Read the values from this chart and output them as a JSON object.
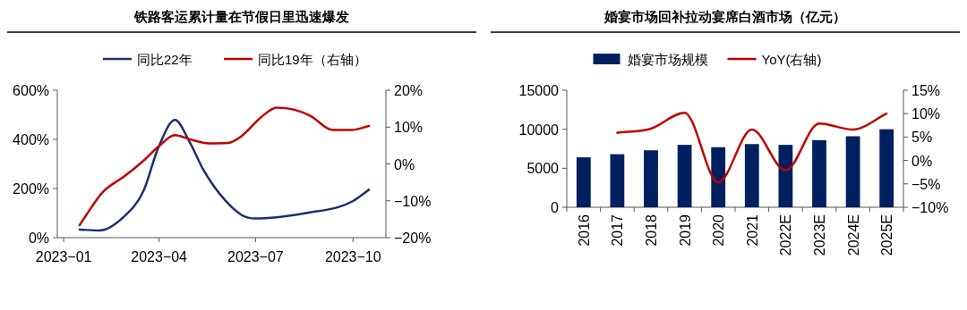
{
  "chart_data": [
    {
      "type": "line",
      "title": "铁路客运累计量在节假日里迅速爆发",
      "legend": "top",
      "grid": false,
      "marker": "none",
      "line_style": "solid",
      "xlim": [
        "2022-12-26",
        "2023-11-01"
      ],
      "xticks": [
        {
          "value": "2023-01-01",
          "label": "2023−01"
        },
        {
          "value": "2023-04-01",
          "label": "2023−04"
        },
        {
          "value": "2023-07-01",
          "label": "2023−07"
        },
        {
          "value": "2023-10-01",
          "label": "2023−10"
        }
      ],
      "ylim": [
        0,
        600
      ],
      "yticks": [
        {
          "value": 0,
          "label": "0%"
        },
        {
          "value": 200,
          "label": "200%"
        },
        {
          "value": 400,
          "label": "400%"
        },
        {
          "value": 600,
          "label": "600%"
        }
      ],
      "y2lim": [
        -20,
        20
      ],
      "y2ticks": [
        {
          "value": -20,
          "label": "−20%"
        },
        {
          "value": -10,
          "label": "−10%"
        },
        {
          "value": 0,
          "label": "0%"
        },
        {
          "value": 10,
          "label": "10%"
        },
        {
          "value": 20,
          "label": "20%"
        }
      ],
      "series": [
        {
          "name": "同比22年",
          "color": "#1b2f6e",
          "x": [
            "2023-01-16",
            "2023-02-04",
            "2023-02-27",
            "2023-03-17",
            "2023-03-31",
            "2023-04-16",
            "2023-04-30",
            "2023-05-13",
            "2023-05-29",
            "2023-06-18",
            "2023-07-01",
            "2023-07-21",
            "2023-08-19",
            "2023-09-17",
            "2023-10-01",
            "2023-10-16"
          ],
          "values": [
            33,
            29,
            86,
            187,
            363,
            479,
            388,
            275,
            174,
            92,
            78,
            83,
            101,
            124,
            149,
            195
          ]
        },
        {
          "name": "同比19年（右轴）",
          "color": "#c00000",
          "axis": "y2",
          "x": [
            "2023-01-16",
            "2023-02-07",
            "2023-02-27",
            "2023-03-17",
            "2023-03-31",
            "2023-04-16",
            "2023-04-30",
            "2023-05-18",
            "2023-06-05",
            "2023-06-18",
            "2023-07-06",
            "2023-07-21",
            "2023-08-07",
            "2023-08-22",
            "2023-09-12",
            "2023-09-29",
            "2023-10-16"
          ],
          "values": [
            -16.6,
            -7.6,
            -3.4,
            0.8,
            4.6,
            7.8,
            6.7,
            5.6,
            5.7,
            7.6,
            12.6,
            15.3,
            14.7,
            13.0,
            9.2,
            9.2,
            10.3
          ]
        }
      ]
    },
    {
      "type": "bar",
      "title": "婚宴市场回补拉动宴席白酒市场（亿元）",
      "legend": "top",
      "grid": false,
      "categories": [
        "2016",
        "2017",
        "2018",
        "2019",
        "2020",
        "2021",
        "2022E",
        "2023E",
        "2024E",
        "2025E"
      ],
      "ylim": [
        0,
        15000
      ],
      "yticks": [
        0,
        5000,
        10000,
        15000
      ],
      "y2lim": [
        -10,
        15
      ],
      "y2ticks": [
        {
          "value": -10,
          "label": "−10%"
        },
        {
          "value": -5,
          "label": "−5%"
        },
        {
          "value": 0,
          "label": "0%"
        },
        {
          "value": 5,
          "label": "5%"
        },
        {
          "value": 10,
          "label": "10%"
        },
        {
          "value": 15,
          "label": "15%"
        }
      ],
      "series": [
        {
          "name": "婚宴市场规模",
          "color": "#002060",
          "values": [
            6400,
            6800,
            7300,
            8000,
            7700,
            8100,
            8000,
            8600,
            9100,
            10000
          ]
        },
        {
          "name": "YoY(右轴)",
          "type": "line",
          "color": "#c00000",
          "axis": "y2",
          "values": [
            null,
            5.9,
            6.8,
            10.2,
            -4.7,
            6.6,
            -2.1,
            7.9,
            6.6,
            10.0
          ]
        }
      ]
    }
  ]
}
